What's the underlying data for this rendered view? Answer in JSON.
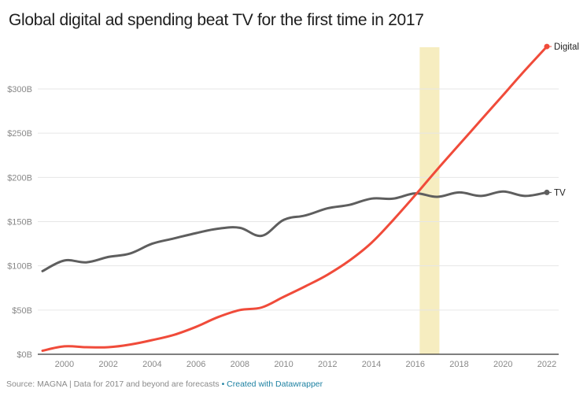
{
  "chart_data": {
    "type": "line",
    "title": "Global digital ad spending beat TV for the first time in 2017",
    "xlabel": "",
    "ylabel": "",
    "x": [
      1999,
      2000,
      2001,
      2002,
      2003,
      2004,
      2005,
      2006,
      2007,
      2008,
      2009,
      2010,
      2011,
      2012,
      2013,
      2014,
      2015,
      2016,
      2017,
      2018,
      2019,
      2020,
      2021,
      2022
    ],
    "xlim": [
      1999,
      2022
    ],
    "ylim": [
      0,
      350
    ],
    "x_ticks": [
      "2000",
      "2002",
      "2004",
      "2006",
      "2008",
      "2010",
      "2012",
      "2014",
      "2016",
      "2018",
      "2020",
      "2022"
    ],
    "x_tick_values": [
      2000,
      2002,
      2004,
      2006,
      2008,
      2010,
      2012,
      2014,
      2016,
      2018,
      2020,
      2022
    ],
    "y_ticks": [
      "$0B",
      "$50B",
      "$100B",
      "$150B",
      "$200B",
      "$250B",
      "$300B"
    ],
    "y_tick_values": [
      0,
      50,
      100,
      150,
      200,
      250,
      300
    ],
    "grid": true,
    "highlight_band": {
      "from": 2016.2,
      "to": 2017.1,
      "color": "#f6edc0"
    },
    "series": [
      {
        "name": "Digital",
        "label": "Digital",
        "color": "#f04b3a",
        "values": [
          4,
          9,
          8,
          8,
          11,
          16,
          22,
          31,
          42,
          50,
          53,
          65,
          77,
          90,
          106,
          126,
          152,
          180,
          209,
          237,
          265,
          293,
          321,
          348
        ]
      },
      {
        "name": "TV",
        "label": "TV",
        "color": "#5e5e5e",
        "values": [
          94,
          106,
          104,
          110,
          114,
          125,
          131,
          137,
          142,
          143,
          134,
          152,
          157,
          165,
          169,
          176,
          176,
          182,
          178,
          183,
          179,
          184,
          179,
          183
        ]
      }
    ],
    "legend": "direct-labels-right"
  },
  "footer": {
    "source": "Source: MAGNA | Data for 2017 and beyond are forecasts",
    "separator": "•",
    "credit": "Created with Datawrapper"
  }
}
